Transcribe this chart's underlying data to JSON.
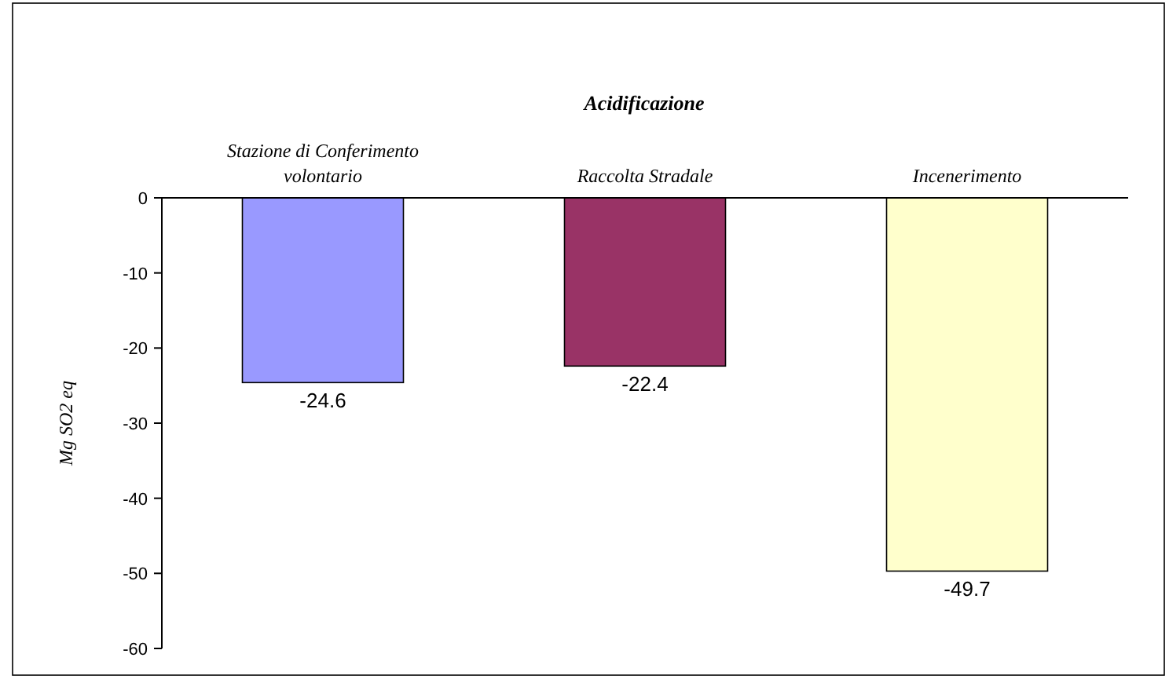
{
  "chart_data": {
    "type": "bar",
    "title": "Acidificazione",
    "ylabel": "Mg SO2 eq",
    "categories": [
      "Stazione di Conferimento volontario",
      "Raccolta Stradale",
      "Incenerimento"
    ],
    "values": [
      -24.6,
      -22.4,
      -49.7
    ],
    "colors": [
      "#9999ff",
      "#993366",
      "#ffffcc"
    ],
    "ylim": [
      -60,
      0
    ],
    "yticks": [
      -60,
      -50,
      -40,
      -30,
      -20,
      -10,
      0
    ],
    "data_labels": true
  }
}
